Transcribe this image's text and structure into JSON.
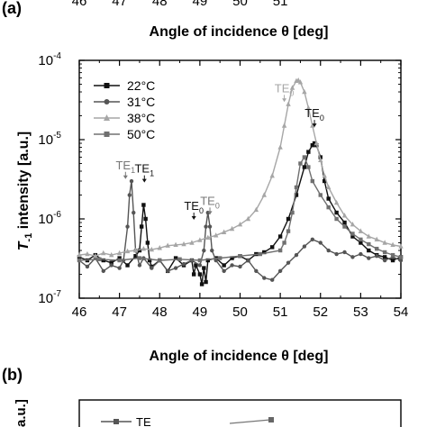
{
  "top_partial": {
    "tick_labels": [
      "46",
      "47",
      "48",
      "49",
      "50",
      "51"
    ],
    "xlabel": "Angle of incidence θ [deg]"
  },
  "panel_a": {
    "label": "(a)"
  },
  "panel_b": {
    "label": "(b)",
    "ylabel_fragment": "a.u.]",
    "legend_fragment": "TE"
  },
  "chart_data": {
    "type": "line",
    "xlabel": "Angle of incidence θ [deg]",
    "ylabel": "T-1 intensity [a.u.]",
    "ylabel_parts": {
      "main": "T",
      "sub": "-1",
      "rest": " intensity [a.u.]"
    },
    "xlim": [
      46,
      54
    ],
    "ylim": [
      1e-07,
      0.0001
    ],
    "yscale": "log",
    "x_ticks": [
      "46",
      "47",
      "48",
      "49",
      "50",
      "51",
      "52",
      "53",
      "54"
    ],
    "y_ticks": [
      {
        "base": "10",
        "exp": "-7",
        "value": 1e-07
      },
      {
        "base": "10",
        "exp": "-6",
        "value": 1e-06
      },
      {
        "base": "10",
        "exp": "-5",
        "value": 1e-05
      },
      {
        "base": "10",
        "exp": "-4",
        "value": 0.0001
      }
    ],
    "legend_position": "top-left",
    "grid": false,
    "series": [
      {
        "name": "22°C",
        "color": "#111111",
        "marker": "square",
        "x": [
          46.0,
          46.2,
          46.4,
          46.6,
          46.8,
          47.0,
          47.2,
          47.4,
          47.5,
          47.55,
          47.6,
          47.65,
          47.7,
          47.75,
          47.8,
          48.0,
          48.2,
          48.4,
          48.6,
          48.8,
          48.85,
          48.9,
          49.0,
          49.05,
          49.1,
          49.15,
          49.2,
          49.4,
          49.6,
          49.8,
          50.0,
          50.2,
          50.4,
          50.6,
          50.8,
          51.0,
          51.2,
          51.4,
          51.6,
          51.7,
          51.8,
          51.85,
          51.9,
          52.0,
          52.1,
          52.2,
          52.4,
          52.6,
          52.8,
          53.0,
          53.2,
          53.4,
          53.6,
          53.8,
          54.0
        ],
        "y": [
          3.3e-07,
          3e-07,
          3.5e-07,
          3e-07,
          2.8e-07,
          3.2e-07,
          2.6e-07,
          3.4e-07,
          4e-07,
          8e-07,
          1.5e-06,
          1e-06,
          5e-07,
          3e-07,
          2.5e-07,
          3e-07,
          2.2e-07,
          3.2e-07,
          2.6e-07,
          3e-07,
          2e-07,
          2.6e-07,
          2e-07,
          1.5e-07,
          2.4e-07,
          1.6e-07,
          3e-07,
          3.2e-07,
          2.6e-07,
          3.2e-07,
          3.4e-07,
          3e-07,
          3.6e-07,
          3.8e-07,
          4.4e-07,
          6e-07,
          1e-06,
          2e-06,
          4.5e-06,
          7e-06,
          8.5e-06,
          9e-06,
          8.5e-06,
          6e-06,
          3e-06,
          1.8e-06,
          1.2e-06,
          9e-07,
          6e-07,
          5e-07,
          4e-07,
          3.5e-07,
          3.3e-07,
          3e-07,
          3.3e-07
        ]
      },
      {
        "name": "31°C",
        "color": "#555555",
        "marker": "circle",
        "x": [
          46.0,
          46.2,
          46.4,
          46.6,
          46.8,
          47.0,
          47.1,
          47.2,
          47.25,
          47.3,
          47.35,
          47.4,
          47.5,
          47.6,
          47.8,
          48.0,
          48.2,
          48.4,
          48.6,
          48.8,
          49.0,
          49.1,
          49.15,
          49.2,
          49.25,
          49.3,
          49.4,
          49.6,
          49.8,
          50.0,
          50.2,
          50.4,
          50.6,
          50.8,
          51.0,
          51.2,
          51.4,
          51.6,
          51.8,
          52.0,
          52.2,
          52.4,
          52.6,
          52.8,
          53.0,
          53.2,
          53.4,
          53.6,
          53.8,
          54.0
        ],
        "y": [
          3e-07,
          2.5e-07,
          3.2e-07,
          2.2e-07,
          2.6e-07,
          2.4e-07,
          3e-07,
          8e-07,
          2e-06,
          3e-06,
          1.2e-06,
          4e-07,
          2.6e-07,
          3.2e-07,
          2.4e-07,
          3e-07,
          2.2e-07,
          2.4e-07,
          2.7e-07,
          3e-07,
          2.6e-07,
          4e-07,
          8e-07,
          1.2e-06,
          8e-07,
          4e-07,
          3e-07,
          2.2e-07,
          2.6e-07,
          2.5e-07,
          3e-07,
          2.2e-07,
          1.8e-07,
          1.7e-07,
          2.2e-07,
          2.8e-07,
          3.5e-07,
          4.5e-07,
          5.5e-07,
          5e-07,
          4e-07,
          3.6e-07,
          3.8e-07,
          3.3e-07,
          3.6e-07,
          3.2e-07,
          3.4e-07,
          3e-07,
          3.3e-07,
          3e-07
        ]
      },
      {
        "name": "38°C",
        "color": "#a6a6a6",
        "marker": "triangle",
        "x": [
          46.0,
          46.2,
          46.4,
          46.6,
          46.8,
          47.0,
          47.2,
          47.4,
          47.6,
          47.8,
          48.0,
          48.2,
          48.4,
          48.6,
          48.8,
          49.0,
          49.2,
          49.4,
          49.6,
          49.8,
          50.0,
          50.2,
          50.4,
          50.6,
          50.8,
          51.0,
          51.1,
          51.2,
          51.3,
          51.4,
          51.45,
          51.5,
          51.6,
          51.7,
          51.8,
          51.9,
          52.0,
          52.1,
          52.2,
          52.4,
          52.6,
          52.8,
          53.0,
          53.2,
          53.4,
          53.6,
          53.8,
          54.0
        ],
        "y": [
          3.5e-07,
          3.6e-07,
          3.4e-07,
          3.7e-07,
          3.5e-07,
          3.7e-07,
          3.9e-07,
          4e-07,
          4.2e-07,
          4.1e-07,
          4.3e-07,
          4.6e-07,
          4.7e-07,
          4.8e-07,
          5e-07,
          5.4e-07,
          5.8e-07,
          6.2e-07,
          6.8e-07,
          7.5e-07,
          8.5e-07,
          1e-06,
          1.3e-06,
          2e-06,
          3.5e-06,
          8e-06,
          1.5e-05,
          2.8e-05,
          4.5e-05,
          5.5e-05,
          5.6e-05,
          5.3e-05,
          4e-05,
          2.5e-05,
          1.5e-05,
          9e-06,
          5.5e-06,
          3.5e-06,
          2.5e-06,
          1.6e-06,
          1.1e-06,
          8.5e-07,
          7e-07,
          6e-07,
          5.5e-07,
          5e-07,
          4.7e-07,
          4.5e-07
        ]
      },
      {
        "name": "50°C",
        "color": "#707070",
        "marker": "square",
        "x": [
          46.0,
          46.5,
          47.0,
          47.5,
          48.0,
          48.5,
          49.0,
          49.5,
          50.0,
          50.5,
          51.0,
          51.1,
          51.2,
          51.3,
          51.4,
          51.5,
          51.6,
          51.7,
          51.8,
          52.0,
          52.2,
          52.4,
          52.6,
          52.8,
          53.0,
          53.2,
          53.4,
          53.6,
          53.8,
          54.0
        ],
        "y": [
          3e-07,
          3.1e-07,
          3e-07,
          3.2e-07,
          3e-07,
          3.1e-07,
          3e-07,
          3.2e-07,
          3.4e-07,
          3.6e-07,
          4e-07,
          5e-07,
          7e-07,
          1.2e-06,
          2.5e-06,
          5e-06,
          6e-06,
          4.5e-06,
          3e-06,
          2e-06,
          1.4e-06,
          1e-06,
          8e-07,
          6.5e-07,
          5.5e-07,
          4.8e-07,
          4.2e-07,
          3.8e-07,
          3.5e-07,
          3.3e-07
        ]
      }
    ],
    "annotations": [
      {
        "main": "TE",
        "sub": "1",
        "color": "#777777",
        "x": 47.15,
        "y": 3.1e-06,
        "arrow": true
      },
      {
        "main": "TE",
        "sub": "1",
        "color": "#111111",
        "x": 47.62,
        "y": 2.8e-06,
        "arrow": true
      },
      {
        "main": "TE",
        "sub": "0",
        "color": "#111111",
        "x": 48.85,
        "y": 9.5e-07,
        "arrow": true
      },
      {
        "main": "TE",
        "sub": "0",
        "color": "#777777",
        "x": 49.25,
        "y": 1.1e-06,
        "arrow": true
      },
      {
        "main": "TE",
        "sub": "0",
        "color": "#a6a6a6",
        "x": 51.1,
        "y": 2.9e-05,
        "arrow": true
      },
      {
        "main": "TE",
        "sub": "0",
        "color": "#111111",
        "x": 51.85,
        "y": 1.4e-05,
        "arrow": true
      }
    ]
  }
}
